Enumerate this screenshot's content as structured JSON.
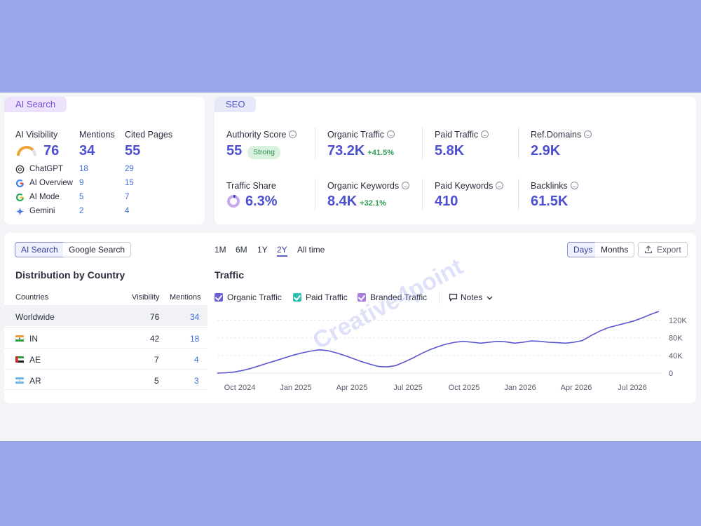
{
  "ai_search": {
    "tab_label": "AI Search",
    "visibility": {
      "label": "AI Visibility",
      "value": "76",
      "level": 0.76
    },
    "mentions": {
      "label": "Mentions",
      "value": "34"
    },
    "cited_pages": {
      "label": "Cited Pages",
      "value": "55"
    },
    "sources": [
      {
        "name": "ChatGPT",
        "icon": "chatgpt-icon",
        "mentions": "18",
        "cited": "29"
      },
      {
        "name": "AI Overview",
        "icon": "google-icon",
        "mentions": "9",
        "cited": "15"
      },
      {
        "name": "AI Mode",
        "icon": "google-icon",
        "mentions": "5",
        "cited": "7"
      },
      {
        "name": "Gemini",
        "icon": "gemini-icon",
        "mentions": "2",
        "cited": "4"
      }
    ]
  },
  "seo": {
    "tab_label": "SEO",
    "authority": {
      "label": "Authority Score",
      "value": "55",
      "badge": "Strong"
    },
    "organic_traffic": {
      "label": "Organic Traffic",
      "value": "73.2K",
      "delta": "+41.5%"
    },
    "paid_traffic": {
      "label": "Paid Traffic",
      "value": "5.8K"
    },
    "ref_domains": {
      "label": "Ref.Domains",
      "value": "2.9K"
    },
    "traffic_share": {
      "label": "Traffic Share",
      "value": "6.3%",
      "level": 0.063
    },
    "organic_keywords": {
      "label": "Organic Keywords",
      "value": "8.4K",
      "delta": "+32.1%"
    },
    "paid_keywords": {
      "label": "Paid Keywords",
      "value": "410"
    },
    "backlinks": {
      "label": "Backlinks",
      "value": "61.5K"
    }
  },
  "distribution": {
    "toggle": [
      "AI Search",
      "Google Search"
    ],
    "title": "Distribution by Country",
    "columns": [
      "Countries",
      "Visibility",
      "Mentions"
    ],
    "rows": [
      {
        "country": "Worldwide",
        "flag": "",
        "visibility": "76",
        "mentions": "34"
      },
      {
        "country": "IN",
        "flag": "india-flag-icon",
        "visibility": "42",
        "mentions": "18"
      },
      {
        "country": "AE",
        "flag": "uae-flag-icon",
        "visibility": "7",
        "mentions": "4"
      },
      {
        "country": "AR",
        "flag": "argentina-flag-icon",
        "visibility": "5",
        "mentions": "3"
      }
    ]
  },
  "traffic": {
    "ranges": [
      "1M",
      "6M",
      "1Y",
      "2Y",
      "All time"
    ],
    "active_range": "2Y",
    "granularity": [
      "Days",
      "Months"
    ],
    "export_label": "Export",
    "title": "Traffic",
    "legend": [
      {
        "label": "Organic Traffic",
        "color": "#6b5fd6"
      },
      {
        "label": "Paid Traffic",
        "color": "#2cc0b0"
      },
      {
        "label": "Branded Traffic",
        "color": "#a77ae0"
      }
    ],
    "notes_label": "Notes"
  },
  "chart_data": {
    "type": "line",
    "xlabels": [
      "Oct 2024",
      "Jan 2025",
      "Apr 2025",
      "Jul 2025",
      "Oct 2025",
      "Jan 2026",
      "Apr 2026",
      "Jul 2026"
    ],
    "yticks": [
      "120K",
      "80K",
      "40K",
      "0"
    ],
    "ylim": [
      0,
      140000
    ],
    "series": [
      {
        "name": "Organic Traffic",
        "color": "#5a55d0",
        "values": [
          0,
          800,
          2500,
          6000,
          11000,
          17000,
          23000,
          29000,
          35000,
          41000,
          46000,
          50000,
          53000,
          51000,
          46000,
          40000,
          33000,
          26000,
          20000,
          15000,
          14000,
          17000,
          25000,
          34000,
          44000,
          53000,
          60000,
          66000,
          70000,
          72000,
          70000,
          68000,
          70000,
          72000,
          71000,
          68000,
          70000,
          73000,
          72000,
          70000,
          69000,
          68000,
          70000,
          74000,
          85000,
          95000,
          103000,
          108000,
          113000,
          118000,
          125000,
          133000,
          140000
        ]
      }
    ]
  },
  "watermark": "Creative4point"
}
